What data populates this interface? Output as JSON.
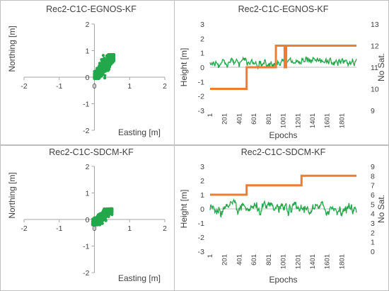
{
  "chart_data": [
    {
      "type": "scatter",
      "title": "Rec2-C1C-EGNOS-KF",
      "xlabel": "Easting [m]",
      "ylabel": "Northing [m]",
      "xlim": [
        -2,
        2
      ],
      "ylim": [
        -2,
        2
      ],
      "xticks": [
        "-2",
        "-1",
        "0",
        "1",
        "2"
      ],
      "yticks": [
        "-2",
        "-1",
        "0",
        "1",
        "2"
      ],
      "series_color": "#22a84a",
      "cloud": {
        "x_range": [
          0.0,
          0.55
        ],
        "y_range": [
          -0.05,
          0.85
        ],
        "trend": "diagonal up-right"
      }
    },
    {
      "type": "line",
      "title": "Rec2-C1C-EGNOS-KF",
      "xlabel": "Epochs",
      "ylabel": "Height [m]",
      "y2label": "No Sat.",
      "ylim": [
        -3,
        3
      ],
      "y2lim": [
        9,
        13
      ],
      "xticks": [
        "1",
        "201",
        "401",
        "601",
        "801",
        "1001",
        "1201",
        "1401",
        "1601",
        "1801"
      ],
      "yticks": [
        "-3",
        "-2",
        "-1",
        "0",
        "1",
        "2",
        "3"
      ],
      "y2ticks": [
        "9",
        "10",
        "11",
        "12",
        "13"
      ],
      "series": [
        {
          "axis": "left",
          "color": "#22a84a",
          "mean": 0.35,
          "noise": 0.18,
          "n_epochs": 2000
        },
        {
          "axis": "right",
          "color": "#ed7d31",
          "step_x": [
            1,
            500,
            500,
            900,
            900,
            1020,
            1020,
            1040,
            1040,
            1080,
            1080,
            2000
          ],
          "step_y": [
            10,
            10,
            11,
            11,
            12,
            12,
            11,
            11,
            12,
            12,
            12,
            12
          ]
        }
      ]
    },
    {
      "type": "scatter",
      "title": "Rec2-C1C-SDCM-KF",
      "xlabel": "Easting [m]",
      "ylabel": "Northing [m]",
      "xlim": [
        -2,
        2
      ],
      "ylim": [
        -2,
        2
      ],
      "xticks": [
        "-2",
        "-1",
        "0",
        "1",
        "2"
      ],
      "yticks": [
        "-2",
        "-1",
        "0",
        "1",
        "2"
      ],
      "series_color": "#22a84a",
      "cloud": {
        "x_range": [
          -0.05,
          0.5
        ],
        "y_range": [
          -0.2,
          0.4
        ],
        "trend": "diagonal up-right"
      }
    },
    {
      "type": "line",
      "title": "Rec2-C1C-SDCM-KF",
      "xlabel": "Epochs",
      "ylabel": "Height [m]",
      "y2label": "No Sat.",
      "ylim": [
        -3,
        3
      ],
      "y2lim": [
        0,
        9
      ],
      "xticks": [
        "1",
        "201",
        "401",
        "601",
        "801",
        "1001",
        "1201",
        "1401",
        "1601",
        "1801"
      ],
      "yticks": [
        "-3",
        "-2",
        "-1",
        "0",
        "1",
        "2",
        "3"
      ],
      "y2ticks": [
        "0",
        "1",
        "2",
        "3",
        "4",
        "5",
        "6",
        "7",
        "8",
        "9"
      ],
      "series": [
        {
          "axis": "left",
          "color": "#22a84a",
          "mean": 0.0,
          "noise": 0.25,
          "n_epochs": 2000
        },
        {
          "axis": "right",
          "color": "#ed7d31",
          "step_x": [
            1,
            500,
            500,
            1250,
            1250,
            2000
          ],
          "step_y": [
            6,
            6,
            7,
            7,
            8,
            8
          ]
        }
      ]
    }
  ]
}
